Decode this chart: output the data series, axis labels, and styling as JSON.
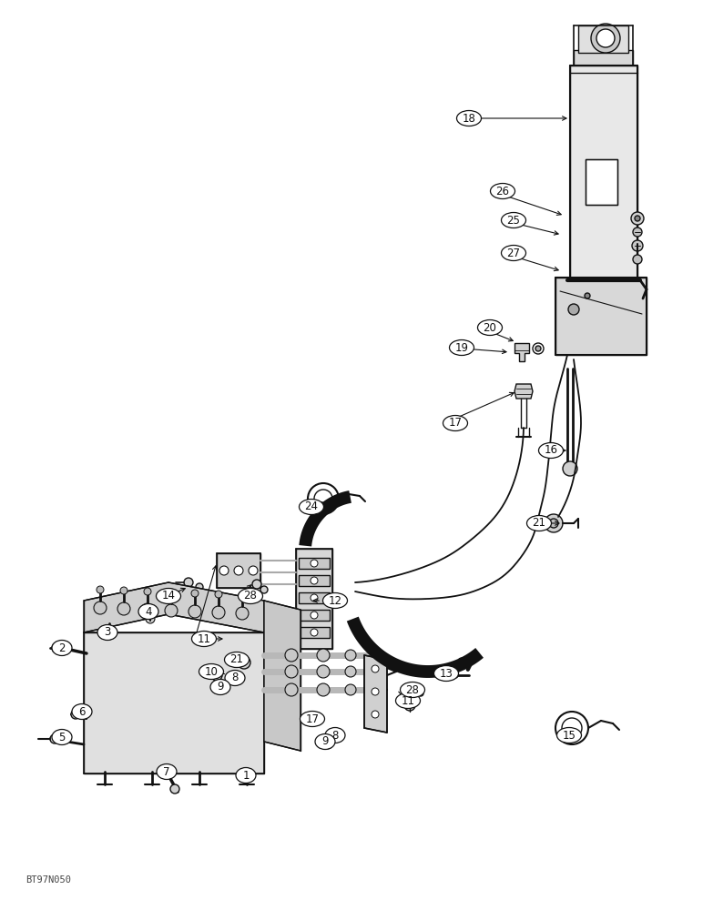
{
  "background_color": "#ffffff",
  "watermark": "BT97N050",
  "line_color": "#111111",
  "fig_width": 7.72,
  "fig_height": 10.0,
  "dpi": 100,
  "labels": [
    [
      "1",
      270,
      852
    ],
    [
      "2",
      68,
      712
    ],
    [
      "3",
      118,
      695
    ],
    [
      "4",
      163,
      672
    ],
    [
      "5",
      68,
      810
    ],
    [
      "6",
      90,
      782
    ],
    [
      "7",
      183,
      848
    ],
    [
      "8",
      258,
      745
    ],
    [
      "8",
      368,
      808
    ],
    [
      "9",
      242,
      755
    ],
    [
      "9",
      357,
      815
    ],
    [
      "10",
      232,
      738
    ],
    [
      "11",
      224,
      702
    ],
    [
      "11",
      448,
      770
    ],
    [
      "12",
      368,
      660
    ],
    [
      "13",
      490,
      740
    ],
    [
      "14",
      185,
      655
    ],
    [
      "15",
      625,
      808
    ],
    [
      "16",
      605,
      495
    ],
    [
      "17",
      500,
      465
    ],
    [
      "17",
      343,
      790
    ],
    [
      "18",
      515,
      130
    ],
    [
      "19",
      507,
      382
    ],
    [
      "20",
      538,
      360
    ],
    [
      "21",
      260,
      725
    ],
    [
      "21",
      592,
      575
    ],
    [
      "24",
      342,
      557
    ],
    [
      "25",
      564,
      242
    ],
    [
      "26",
      552,
      210
    ],
    [
      "27",
      564,
      278
    ],
    [
      "28",
      275,
      655
    ],
    [
      "28",
      453,
      758
    ]
  ]
}
